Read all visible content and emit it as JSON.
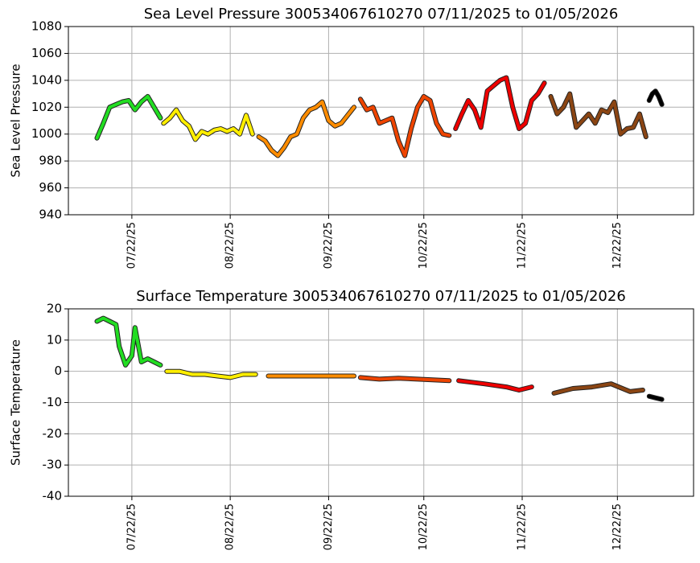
{
  "chart_data": [
    {
      "type": "line",
      "title": "Sea Level Pressure 300534067610270  07/11/2025 to 01/05/2026",
      "ylabel": "Sea Level Pressure",
      "xlim": [
        "2025-07-02",
        "2026-01-15"
      ],
      "ylim": [
        940,
        1080
      ],
      "yticks": [
        940,
        960,
        980,
        1000,
        1020,
        1040,
        1060,
        1080
      ],
      "xticks": [
        {
          "value": "2025-07-22",
          "label": "07/22/25"
        },
        {
          "value": "2025-08-22",
          "label": "08/22/25"
        },
        {
          "value": "2025-09-22",
          "label": "09/22/25"
        },
        {
          "value": "2025-10-22",
          "label": "10/22/25"
        },
        {
          "value": "2025-11-22",
          "label": "11/22/25"
        },
        {
          "value": "2025-12-22",
          "label": "12/22/25"
        }
      ],
      "grid": true,
      "series": [
        {
          "color": "#22dd22",
          "x": [
            "2025-07-11",
            "2025-07-13",
            "2025-07-15",
            "2025-07-17",
            "2025-07-19",
            "2025-07-21",
            "2025-07-23",
            "2025-07-25",
            "2025-07-27",
            "2025-07-29",
            "2025-07-31"
          ],
          "values": [
            997,
            1008,
            1020,
            1022,
            1024,
            1025,
            1018,
            1024,
            1028,
            1020,
            1012
          ]
        },
        {
          "color": "#ffee00",
          "x": [
            "2025-08-01",
            "2025-08-03",
            "2025-08-05",
            "2025-08-07",
            "2025-08-09",
            "2025-08-11",
            "2025-08-13",
            "2025-08-15",
            "2025-08-17",
            "2025-08-19",
            "2025-08-21",
            "2025-08-23",
            "2025-08-25",
            "2025-08-27",
            "2025-08-29"
          ],
          "values": [
            1008,
            1012,
            1018,
            1010,
            1006,
            996,
            1002,
            1000,
            1003,
            1004,
            1002,
            1004,
            1000,
            1014,
            1000
          ]
        },
        {
          "color": "#ff8c00",
          "x": [
            "2025-08-31",
            "2025-09-02",
            "2025-09-04",
            "2025-09-06",
            "2025-09-08",
            "2025-09-10",
            "2025-09-12",
            "2025-09-14",
            "2025-09-16",
            "2025-09-18",
            "2025-09-20",
            "2025-09-22",
            "2025-09-24",
            "2025-09-26",
            "2025-09-28",
            "2025-09-30"
          ],
          "values": [
            998,
            995,
            988,
            984,
            990,
            998,
            1000,
            1012,
            1018,
            1020,
            1024,
            1010,
            1006,
            1008,
            1014,
            1020
          ]
        },
        {
          "color": "#ee4400",
          "x": [
            "2025-10-02",
            "2025-10-04",
            "2025-10-06",
            "2025-10-08",
            "2025-10-10",
            "2025-10-12",
            "2025-10-14",
            "2025-10-16",
            "2025-10-18",
            "2025-10-20",
            "2025-10-22",
            "2025-10-24",
            "2025-10-26",
            "2025-10-28",
            "2025-10-30"
          ],
          "values": [
            1026,
            1018,
            1020,
            1008,
            1010,
            1012,
            995,
            984,
            1004,
            1020,
            1028,
            1025,
            1008,
            1000,
            999
          ]
        },
        {
          "color": "#ee0000",
          "x": [
            "2025-11-01",
            "2025-11-03",
            "2025-11-05",
            "2025-11-07",
            "2025-11-09",
            "2025-11-11",
            "2025-11-13",
            "2025-11-15",
            "2025-11-17",
            "2025-11-19",
            "2025-11-21",
            "2025-11-23",
            "2025-11-25",
            "2025-11-27",
            "2025-11-29"
          ],
          "values": [
            1004,
            1015,
            1025,
            1018,
            1005,
            1032,
            1036,
            1040,
            1042,
            1020,
            1004,
            1008,
            1025,
            1030,
            1038
          ]
        },
        {
          "color": "#8b4513",
          "x": [
            "2025-12-01",
            "2025-12-03",
            "2025-12-05",
            "2025-12-07",
            "2025-12-09",
            "2025-12-11",
            "2025-12-13",
            "2025-12-15",
            "2025-12-17",
            "2025-12-19",
            "2025-12-21",
            "2025-12-23",
            "2025-12-25",
            "2025-12-27",
            "2025-12-29",
            "2025-12-31"
          ],
          "values": [
            1028,
            1015,
            1020,
            1030,
            1005,
            1010,
            1015,
            1008,
            1018,
            1016,
            1024,
            1000,
            1004,
            1005,
            1015,
            998
          ]
        },
        {
          "color": "#000000",
          "x": [
            "2026-01-01",
            "2026-01-02",
            "2026-01-03",
            "2026-01-04",
            "2026-01-05"
          ],
          "values": [
            1025,
            1030,
            1032,
            1028,
            1022
          ]
        }
      ]
    },
    {
      "type": "line",
      "title": "Surface Temperature 300534067610270  07/11/2025 to 01/05/2026",
      "ylabel": "Surface Temperature",
      "xlim": [
        "2025-07-02",
        "2026-01-15"
      ],
      "ylim": [
        -40,
        20
      ],
      "yticks": [
        -40,
        -30,
        -20,
        -10,
        0,
        10,
        20
      ],
      "xticks": [
        {
          "value": "2025-07-22",
          "label": "07/22/25"
        },
        {
          "value": "2025-08-22",
          "label": "08/22/25"
        },
        {
          "value": "2025-09-22",
          "label": "09/22/25"
        },
        {
          "value": "2025-10-22",
          "label": "10/22/25"
        },
        {
          "value": "2025-11-22",
          "label": "11/22/25"
        },
        {
          "value": "2025-12-22",
          "label": "12/22/25"
        }
      ],
      "grid": true,
      "series": [
        {
          "color": "#22dd22",
          "x": [
            "2025-07-11",
            "2025-07-13",
            "2025-07-15",
            "2025-07-17",
            "2025-07-18",
            "2025-07-20",
            "2025-07-22",
            "2025-07-23",
            "2025-07-25",
            "2025-07-27",
            "2025-07-29",
            "2025-07-31"
          ],
          "values": [
            16,
            17,
            16,
            15,
            8,
            2,
            5,
            14,
            3,
            4,
            3,
            2
          ]
        },
        {
          "color": "#ffee00",
          "x": [
            "2025-08-02",
            "2025-08-06",
            "2025-08-10",
            "2025-08-14",
            "2025-08-18",
            "2025-08-22",
            "2025-08-26",
            "2025-08-30"
          ],
          "values": [
            0,
            0,
            -1,
            -1,
            -1.5,
            -2,
            -1,
            -1
          ]
        },
        {
          "color": "#ff8c00",
          "x": [
            "2025-09-03",
            "2025-09-10",
            "2025-09-17",
            "2025-09-24",
            "2025-09-30"
          ],
          "values": [
            -1.5,
            -1.5,
            -1.5,
            -1.5,
            -1.5
          ]
        },
        {
          "color": "#ee4400",
          "x": [
            "2025-10-02",
            "2025-10-08",
            "2025-10-14",
            "2025-10-20",
            "2025-10-30"
          ],
          "values": [
            -2,
            -2.5,
            -2.2,
            -2.5,
            -3
          ]
        },
        {
          "color": "#ee0000",
          "x": [
            "2025-11-02",
            "2025-11-10",
            "2025-11-17",
            "2025-11-21",
            "2025-11-25"
          ],
          "values": [
            -3,
            -4,
            -5,
            -6,
            -5
          ]
        },
        {
          "color": "#8b4513",
          "x": [
            "2025-12-02",
            "2025-12-08",
            "2025-12-14",
            "2025-12-20",
            "2025-12-26",
            "2025-12-30"
          ],
          "values": [
            -7,
            -5.5,
            -5,
            -4,
            -6.5,
            -6
          ]
        },
        {
          "color": "#000000",
          "x": [
            "2026-01-01",
            "2026-01-03",
            "2026-01-05"
          ],
          "values": [
            -8,
            -8.5,
            -9
          ]
        }
      ]
    }
  ]
}
